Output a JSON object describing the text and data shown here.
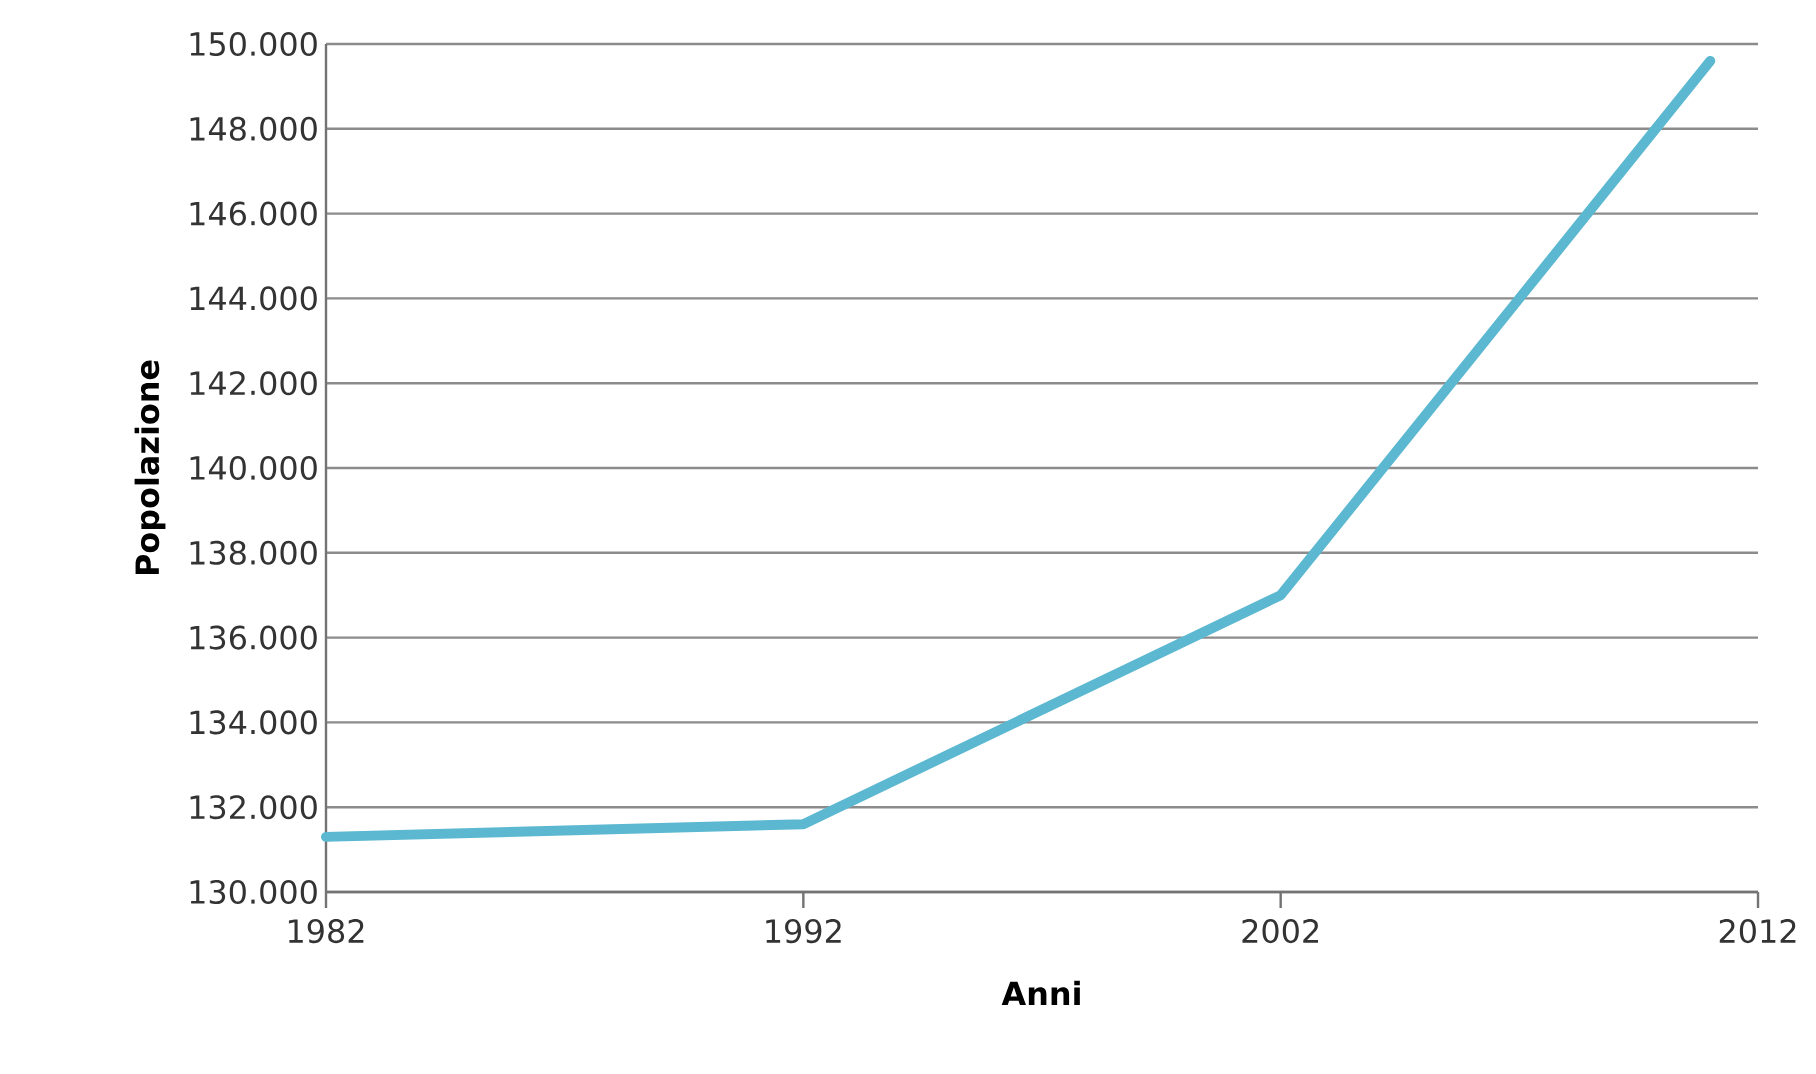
{
  "chart_data": {
    "type": "line",
    "xlabel": "Anni",
    "ylabel": "Popolazione",
    "x": [
      1982,
      1992,
      2002,
      2011
    ],
    "series": [
      {
        "color": "#5bb8d0",
        "values": [
          131300,
          131600,
          137000,
          149600
        ]
      }
    ],
    "xlim": [
      1982,
      2012
    ],
    "xticks": [
      1982,
      1992,
      2002,
      2012
    ],
    "ylim": [
      130000,
      150000
    ],
    "yticks": [
      {
        "value": 130000,
        "label": "130.000"
      },
      {
        "value": 132000,
        "label": "132.000"
      },
      {
        "value": 134000,
        "label": "134.000"
      },
      {
        "value": 136000,
        "label": "136.000"
      },
      {
        "value": 138000,
        "label": "138.000"
      },
      {
        "value": 140000,
        "label": "140.000"
      },
      {
        "value": 142000,
        "label": "142.000"
      },
      {
        "value": 144000,
        "label": "144.000"
      },
      {
        "value": 146000,
        "label": "146.000"
      },
      {
        "value": 148000,
        "label": "148.000"
      },
      {
        "value": 150000,
        "label": "150.000"
      }
    ],
    "grid": "y",
    "marker": "none",
    "line_style": "solid"
  }
}
